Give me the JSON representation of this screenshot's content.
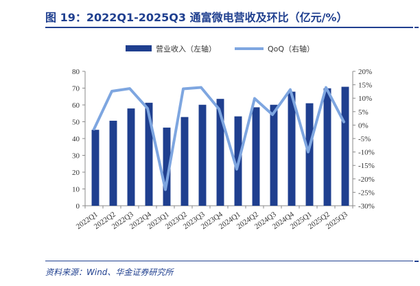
{
  "header": {
    "title": "图 19：2022Q1-2025Q3 通富微电营收及环比（亿元/%）"
  },
  "footer": {
    "source": "资料来源：Wind、华金证券研究所"
  },
  "chart_data": {
    "type": "bar",
    "categories": [
      "2022Q1",
      "2022Q2",
      "2022Q3",
      "2022Q4",
      "2023Q1",
      "2023Q2",
      "2023Q3",
      "2023Q4",
      "2024Q1",
      "2024Q2",
      "2024Q3",
      "2024Q4",
      "2025Q1",
      "2025Q2",
      "2025Q3"
    ],
    "series": [
      {
        "name": "营业收入（左轴）",
        "type": "bar",
        "axis": "left",
        "color": "#1f3f8f",
        "values": [
          45.2,
          50.6,
          57.9,
          61.3,
          46.5,
          52.8,
          60.1,
          63.6,
          53.2,
          58.6,
          60.1,
          67.9,
          61.0,
          69.9,
          70.8
        ]
      },
      {
        "name": "QoQ（右轴）",
        "type": "line",
        "axis": "right",
        "color": "#7ea6e0",
        "values": [
          -1.5,
          12.6,
          13.6,
          6.2,
          -24.0,
          13.5,
          14.0,
          6.0,
          -16.4,
          9.9,
          3.9,
          13.2,
          -10.0,
          14.0,
          1.2
        ]
      }
    ],
    "yleft": {
      "lim": [
        0,
        80
      ],
      "ticks": [
        0,
        10,
        20,
        30,
        40,
        50,
        60,
        70,
        80
      ]
    },
    "yright": {
      "lim": [
        -30,
        20
      ],
      "ticks": [
        -30,
        -25,
        -20,
        -15,
        -10,
        -5,
        0,
        5,
        10,
        15,
        20
      ],
      "unit": "%"
    },
    "legend": "top-center",
    "grid": false
  }
}
